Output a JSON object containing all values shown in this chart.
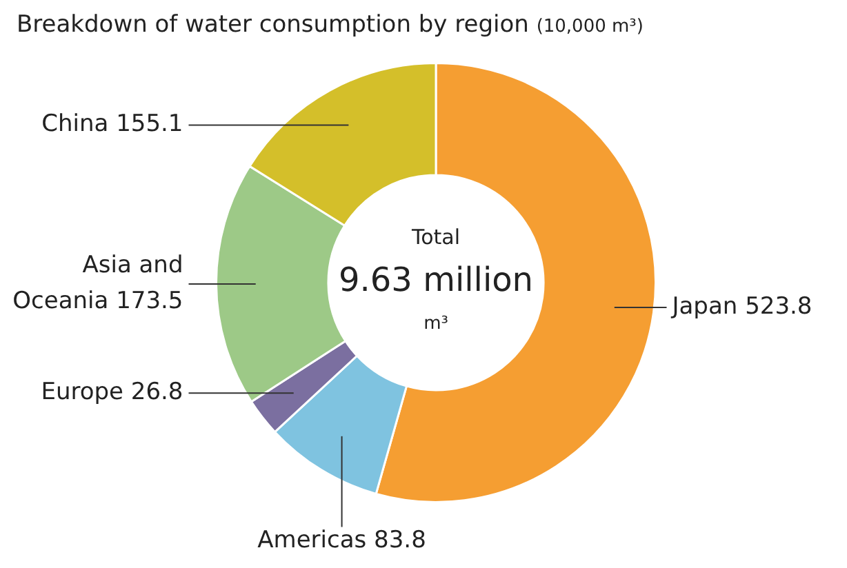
{
  "chart_data": {
    "type": "donut",
    "title": "Breakdown of water consumption by region",
    "subtitle": "(10,000 m³)",
    "categories": [
      "Japan 523.8",
      "Americas 83.8",
      "Europe 26.8",
      "Asia and Oceania 173.5",
      "China 155.1"
    ],
    "values": [
      523.8,
      83.8,
      26.8,
      173.5,
      155.1
    ],
    "colors": [
      "#f59e32",
      "#7fc3e0",
      "#7b6fa0",
      "#9dc987",
      "#d4bf2a"
    ],
    "annotations": [
      "Total",
      "9.63 million",
      "m³"
    ],
    "legend": false
  }
}
